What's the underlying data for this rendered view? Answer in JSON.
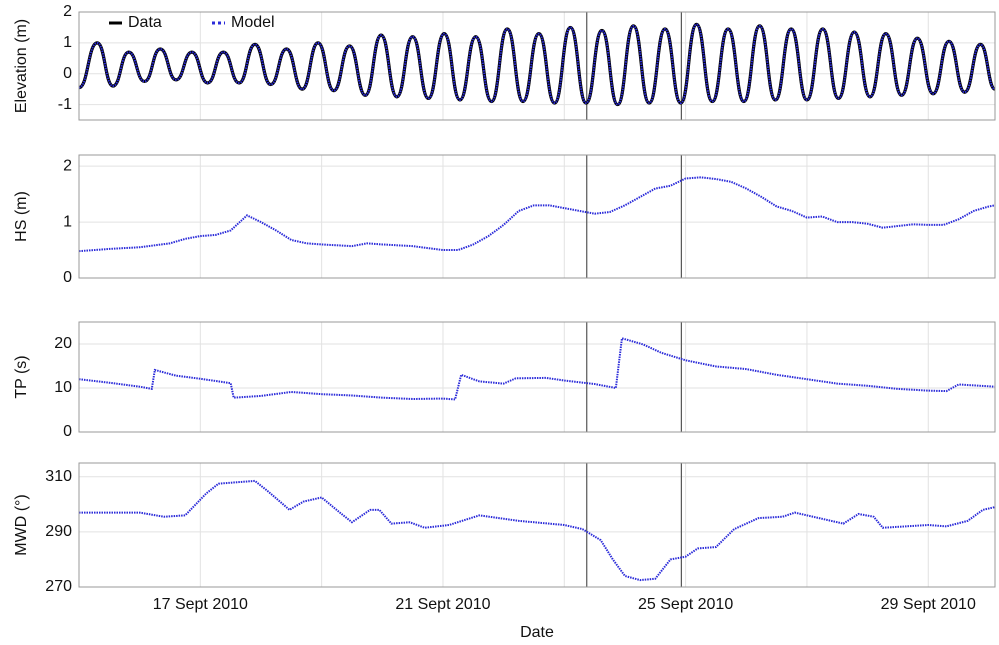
{
  "chart_data": [
    {
      "type": "line",
      "ylabel": "Elevation (m)",
      "legend": "upper left",
      "smooth": true,
      "x": [
        15.0,
        15.3,
        15.56,
        15.82,
        16.08,
        16.34,
        16.6,
        16.86,
        17.12,
        17.38,
        17.64,
        17.9,
        18.16,
        18.42,
        18.68,
        18.94,
        19.2,
        19.46,
        19.72,
        19.98,
        20.24,
        20.5,
        20.76,
        21.02,
        21.28,
        21.54,
        21.8,
        22.06,
        22.32,
        22.58,
        22.84,
        23.1,
        23.36,
        23.62,
        23.88,
        24.14,
        24.4,
        24.66,
        24.92,
        25.18,
        25.44,
        25.7,
        25.96,
        26.22,
        26.48,
        26.74,
        27.0,
        27.26,
        27.52,
        27.78,
        28.04,
        28.3,
        28.56,
        28.82,
        29.08,
        29.34,
        29.6,
        29.86,
        30.1
      ],
      "series": [
        {
          "name": "Data",
          "color": "#000000",
          "linestyle": "solid",
          "values": [
            -0.45,
            1.0,
            -0.4,
            0.7,
            -0.25,
            0.8,
            -0.2,
            0.7,
            -0.3,
            0.7,
            -0.3,
            0.95,
            -0.35,
            0.8,
            -0.5,
            1.0,
            -0.55,
            0.9,
            -0.7,
            1.25,
            -0.75,
            1.2,
            -0.8,
            1.3,
            -0.85,
            1.2,
            -0.9,
            1.45,
            -0.9,
            1.3,
            -0.95,
            1.5,
            -0.95,
            1.4,
            -1.0,
            1.55,
            -0.95,
            1.45,
            -0.95,
            1.6,
            -0.9,
            1.45,
            -0.9,
            1.55,
            -0.85,
            1.45,
            -0.85,
            1.45,
            -0.8,
            1.35,
            -0.75,
            1.3,
            -0.7,
            1.15,
            -0.65,
            1.05,
            -0.6,
            0.95,
            -0.5
          ]
        },
        {
          "name": "Model",
          "color": "#2b2bd9",
          "linestyle": "dotted",
          "values": [
            -0.45,
            1.0,
            -0.4,
            0.7,
            -0.25,
            0.8,
            -0.2,
            0.7,
            -0.3,
            0.7,
            -0.3,
            0.95,
            -0.35,
            0.8,
            -0.5,
            1.0,
            -0.55,
            0.9,
            -0.7,
            1.25,
            -0.75,
            1.2,
            -0.8,
            1.3,
            -0.85,
            1.2,
            -0.9,
            1.45,
            -0.9,
            1.3,
            -0.95,
            1.5,
            -0.95,
            1.4,
            -1.0,
            1.55,
            -0.95,
            1.45,
            -0.95,
            1.6,
            -0.9,
            1.45,
            -0.9,
            1.55,
            -0.85,
            1.45,
            -0.85,
            1.45,
            -0.8,
            1.35,
            -0.75,
            1.3,
            -0.7,
            1.15,
            -0.65,
            1.05,
            -0.6,
            0.95,
            -0.5
          ]
        }
      ],
      "xlim": [
        15,
        30.1
      ],
      "ylim": [
        -1.5,
        2
      ],
      "yticks": [
        -1,
        0,
        1,
        2
      ],
      "grid": true,
      "xgrid": [
        17,
        19,
        21,
        23,
        25,
        27,
        29
      ],
      "vlines": [
        23.37,
        24.93
      ]
    },
    {
      "type": "line",
      "ylabel": "HS (m)",
      "x": [
        15.0,
        15.5,
        16.0,
        16.5,
        16.75,
        17.0,
        17.25,
        17.5,
        17.77,
        18.0,
        18.25,
        18.5,
        18.75,
        19.0,
        19.5,
        19.75,
        20.0,
        20.5,
        21.0,
        21.25,
        21.5,
        21.75,
        22.0,
        22.25,
        22.5,
        22.75,
        23.0,
        23.25,
        23.5,
        23.75,
        24.0,
        24.25,
        24.5,
        24.75,
        25.0,
        25.25,
        25.5,
        25.75,
        26.0,
        26.25,
        26.5,
        26.75,
        27.0,
        27.25,
        27.5,
        27.75,
        28.0,
        28.25,
        28.5,
        28.75,
        29.0,
        29.25,
        29.5,
        29.75,
        30.0,
        30.1
      ],
      "series": [
        {
          "color": "#2b2bd9",
          "linestyle": "dotted",
          "values": [
            0.48,
            0.52,
            0.55,
            0.62,
            0.7,
            0.75,
            0.77,
            0.85,
            1.12,
            1.0,
            0.85,
            0.68,
            0.62,
            0.6,
            0.57,
            0.62,
            0.6,
            0.57,
            0.5,
            0.5,
            0.6,
            0.75,
            0.95,
            1.2,
            1.3,
            1.3,
            1.25,
            1.2,
            1.15,
            1.18,
            1.3,
            1.45,
            1.6,
            1.65,
            1.78,
            1.8,
            1.77,
            1.72,
            1.6,
            1.45,
            1.28,
            1.2,
            1.08,
            1.1,
            1.0,
            1.0,
            0.97,
            0.9,
            0.93,
            0.96,
            0.95,
            0.95,
            1.05,
            1.2,
            1.28,
            1.3
          ]
        }
      ],
      "xlim": [
        15,
        30.1
      ],
      "ylim": [
        0,
        2.2
      ],
      "yticks": [
        0,
        1,
        2
      ],
      "grid": true,
      "xgrid": [
        17,
        19,
        21,
        23,
        25,
        27,
        29
      ],
      "vlines": [
        23.37,
        24.93
      ]
    },
    {
      "type": "line",
      "ylabel": "TP (s)",
      "x": [
        15.0,
        15.5,
        16.0,
        16.2,
        16.25,
        16.6,
        17.0,
        17.5,
        17.55,
        18.0,
        18.5,
        19.0,
        19.5,
        20.0,
        20.5,
        21.0,
        21.2,
        21.3,
        21.6,
        22.0,
        22.2,
        22.7,
        23.0,
        23.5,
        23.85,
        23.95,
        24.3,
        24.6,
        25.0,
        25.5,
        26.0,
        26.5,
        27.0,
        27.5,
        28.0,
        28.5,
        29.0,
        29.3,
        29.5,
        30.1
      ],
      "series": [
        {
          "color": "#2b2bd9",
          "linestyle": "dotted",
          "values": [
            12,
            11.2,
            10.3,
            9.8,
            14.1,
            12.8,
            12.1,
            11.1,
            7.8,
            8.2,
            9.1,
            8.6,
            8.3,
            7.8,
            7.5,
            7.6,
            7.4,
            13,
            11.5,
            11,
            12.2,
            12.3,
            11.7,
            10.9,
            10,
            21.3,
            19.9,
            18,
            16.3,
            14.9,
            14.3,
            13,
            12,
            11,
            10.5,
            9.8,
            9.4,
            9.3,
            10.8,
            10.3
          ]
        }
      ],
      "xlim": [
        15,
        30.1
      ],
      "ylim": [
        0,
        25
      ],
      "yticks": [
        0,
        10,
        20
      ],
      "grid": true,
      "xgrid": [
        17,
        19,
        21,
        23,
        25,
        27,
        29
      ],
      "vlines": [
        23.37,
        24.93
      ]
    },
    {
      "type": "line",
      "ylabel": "MWD (°)",
      "xlabel": "Date",
      "x": [
        15.0,
        16.0,
        16.4,
        16.75,
        17.1,
        17.3,
        17.6,
        17.9,
        18.1,
        18.47,
        18.7,
        19.0,
        19.3,
        19.5,
        19.8,
        19.95,
        20.15,
        20.45,
        20.7,
        21.1,
        21.6,
        22.25,
        23.0,
        23.3,
        23.6,
        23.8,
        24.0,
        24.25,
        24.5,
        24.75,
        25.0,
        25.2,
        25.5,
        25.8,
        26.2,
        26.6,
        26.8,
        27.2,
        27.6,
        27.85,
        28.1,
        28.25,
        29.0,
        29.3,
        29.65,
        29.9,
        30.1
      ],
      "series": [
        {
          "color": "#2b2bd9",
          "linestyle": "dotted",
          "values": [
            297,
            297,
            295.5,
            296,
            304,
            307.5,
            308,
            308.5,
            305,
            298,
            301,
            302.5,
            297,
            293.5,
            298,
            298,
            293,
            293.5,
            291.5,
            292.5,
            296,
            294,
            292.5,
            291,
            287,
            280,
            274,
            272.5,
            273,
            280,
            281,
            284,
            284.5,
            291,
            295,
            295.5,
            297,
            295,
            293,
            296.5,
            295.5,
            291.5,
            292.5,
            292,
            294,
            298,
            299
          ]
        }
      ],
      "xlim": [
        15,
        30.1
      ],
      "ylim": [
        270,
        315
      ],
      "yticks": [
        270,
        290,
        310
      ],
      "grid": true,
      "xgrid": [
        17,
        19,
        21,
        23,
        25,
        27,
        29
      ],
      "vlines": [
        23.37,
        24.93
      ],
      "xticks": [
        {
          "value": 17,
          "label": "17 Sept 2010"
        },
        {
          "value": 21,
          "label": "21 Sept 2010"
        },
        {
          "value": 25,
          "label": "25 Sept 2010"
        },
        {
          "value": 29,
          "label": "29 Sept 2010"
        }
      ]
    }
  ]
}
